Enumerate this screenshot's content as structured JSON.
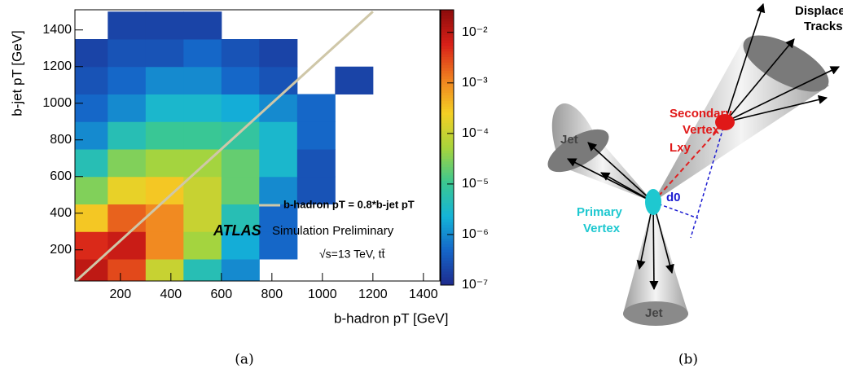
{
  "chart_data": {
    "type": "hist2d",
    "x_label": "b-hadron pT [GeV]",
    "y_label": "b-jet pT [GeV]",
    "xbins": [
      0,
      150,
      300,
      450,
      600,
      750,
      900,
      1050,
      1200,
      1350,
      1500
    ],
    "ybins": [
      0,
      150,
      300,
      450,
      600,
      750,
      900,
      1050,
      1200,
      1350,
      1500
    ],
    "z": [
      [
        0.01,
        0.003,
        0.0001,
        5e-06,
        1e-06,
        null,
        null,
        null,
        null,
        null
      ],
      [
        0.005,
        0.008,
        0.001,
        5e-05,
        2e-06,
        5e-07,
        null,
        null,
        null,
        null
      ],
      [
        0.0003,
        0.002,
        0.001,
        0.0001,
        5e-06,
        5e-07,
        null,
        null,
        null,
        null
      ],
      [
        3e-05,
        0.0002,
        0.0003,
        0.0001,
        2e-05,
        1e-06,
        3e-07,
        null,
        null,
        null
      ],
      [
        5e-06,
        3e-05,
        5e-05,
        5e-05,
        2e-05,
        3e-06,
        3e-07,
        null,
        null,
        null
      ],
      [
        1e-06,
        5e-06,
        1e-05,
        1e-05,
        8e-06,
        3e-06,
        5e-07,
        null,
        null,
        null
      ],
      [
        5e-07,
        1e-06,
        3e-06,
        3e-06,
        2e-06,
        1e-06,
        5e-07,
        null,
        null,
        null
      ],
      [
        3e-07,
        5e-07,
        1e-06,
        1e-06,
        5e-07,
        3e-07,
        null,
        2e-07,
        null,
        null
      ],
      [
        2e-07,
        3e-07,
        3e-07,
        5e-07,
        3e-07,
        2e-07,
        null,
        null,
        null,
        null
      ],
      [
        null,
        2e-07,
        2e-07,
        2e-07,
        null,
        null,
        null,
        null,
        null,
        null
      ]
    ],
    "xlim": [
      20,
      1465
    ],
    "ylim": [
      30,
      1510
    ],
    "xticks": [
      200,
      400,
      600,
      800,
      1000,
      1200,
      1400
    ],
    "yticks": [
      200,
      400,
      600,
      800,
      1000,
      1200,
      1400
    ],
    "zlim": [
      1e-07,
      0.028
    ],
    "zlog": true,
    "zticks": [
      {
        "value": 1e-07,
        "label": "10⁻⁷"
      },
      {
        "value": 1e-06,
        "label": "10⁻⁶"
      },
      {
        "value": 1e-05,
        "label": "10⁻⁵"
      },
      {
        "value": 0.0001,
        "label": "10⁻⁴"
      },
      {
        "value": 0.001,
        "label": "10⁻³"
      },
      {
        "value": 0.01,
        "label": "10⁻²"
      }
    ],
    "colormap": [
      "#1e2a8c",
      "#1565c8",
      "#14b4d8",
      "#3cc890",
      "#a8d43c",
      "#f4d024",
      "#f08020",
      "#d82018",
      "#8c0c0c"
    ],
    "series": [
      {
        "name": "b-hadron pT = 0.8*b-jet pT",
        "color": "#cfc7a8",
        "x": [
          0,
          1200
        ],
        "values": [
          0,
          1500
        ]
      }
    ],
    "annotations": [
      "ATLAS",
      "Simulation Preliminary",
      "√s=13 TeV, tt̄"
    ]
  },
  "diagram": {
    "labels": {
      "displaced": [
        "Displaced",
        "Tracks"
      ],
      "secondary": [
        "Secondary",
        "Vertex"
      ],
      "primary": [
        "Primary",
        "Vertex"
      ],
      "jet_left": "Jet",
      "jet_bottom": "Jet",
      "lxy": "Lxy",
      "d0": "d0"
    }
  },
  "captions": [
    "(a)",
    "(b)"
  ]
}
